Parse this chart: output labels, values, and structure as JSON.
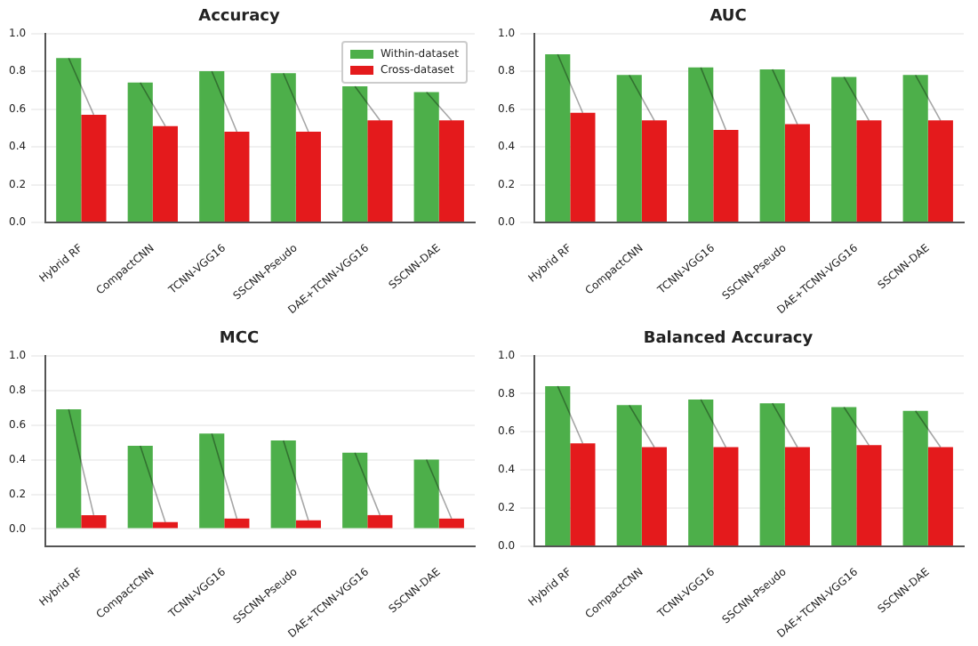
{
  "chart_data": [
    {
      "type": "bar",
      "title": "Accuracy",
      "categories": [
        "Hybrid RF",
        "CompactCNN",
        "TCNN-VGG16",
        "SSCNN-Pseudo",
        "DAE+TCNN-VGG16",
        "SSCNN-DAE"
      ],
      "series": [
        {
          "name": "Within-dataset",
          "color": "#4daf4a",
          "values": [
            0.87,
            0.74,
            0.8,
            0.79,
            0.72,
            0.69
          ]
        },
        {
          "name": "Cross-dataset",
          "color": "#e41a1c",
          "values": [
            0.57,
            0.51,
            0.48,
            0.48,
            0.54,
            0.54
          ]
        }
      ],
      "ylim": [
        0,
        1
      ],
      "yticks": [
        {
          "value": 0,
          "label": "0.0"
        },
        {
          "value": 0.2,
          "label": "0.2"
        },
        {
          "value": 0.4,
          "label": "0.4"
        },
        {
          "value": 0.6,
          "label": "0.6"
        },
        {
          "value": 0.8,
          "label": "0.8"
        },
        {
          "value": 1,
          "label": "1.0"
        }
      ],
      "grid": "y",
      "legend": "top right"
    },
    {
      "type": "bar",
      "title": "AUC",
      "categories": [
        "Hybrid RF",
        "CompactCNN",
        "TCNN-VGG16",
        "SSCNN-Pseudo",
        "DAE+TCNN-VGG16",
        "SSCNN-DAE"
      ],
      "series": [
        {
          "color": "#4daf4a",
          "values": [
            0.89,
            0.78,
            0.82,
            0.81,
            0.77,
            0.78
          ]
        },
        {
          "color": "#e41a1c",
          "values": [
            0.58,
            0.54,
            0.49,
            0.52,
            0.54,
            0.54
          ]
        }
      ],
      "ylim": [
        0,
        1
      ],
      "yticks": [
        {
          "value": 0,
          "label": "0.0"
        },
        {
          "value": 0.2,
          "label": "0.2"
        },
        {
          "value": 0.4,
          "label": "0.4"
        },
        {
          "value": 0.6,
          "label": "0.6"
        },
        {
          "value": 0.8,
          "label": "0.8"
        },
        {
          "value": 1,
          "label": "1.0"
        }
      ],
      "grid": "y"
    },
    {
      "type": "bar",
      "title": "MCC",
      "categories": [
        "Hybrid RF",
        "CompactCNN",
        "TCNN-VGG16",
        "SSCNN-Pseudo",
        "DAE+TCNN-VGG16",
        "SSCNN-DAE"
      ],
      "series": [
        {
          "color": "#4daf4a",
          "values": [
            0.69,
            0.48,
            0.55,
            0.51,
            0.44,
            0.4
          ]
        },
        {
          "color": "#e41a1c",
          "values": [
            0.08,
            0.04,
            0.06,
            0.05,
            0.08,
            0.06
          ]
        }
      ],
      "ylim": [
        -0.1,
        1
      ],
      "yticks": [
        {
          "value": 0,
          "label": "0.0"
        },
        {
          "value": 0.2,
          "label": "0.2"
        },
        {
          "value": 0.4,
          "label": "0.4"
        },
        {
          "value": 0.6,
          "label": "0.6"
        },
        {
          "value": 0.8,
          "label": "0.8"
        },
        {
          "value": 1,
          "label": "1.0"
        }
      ],
      "grid": "y"
    },
    {
      "type": "bar",
      "title": "Balanced Accuracy",
      "categories": [
        "Hybrid RF",
        "CompactCNN",
        "TCNN-VGG16",
        "SSCNN-Pseudo",
        "DAE+TCNN-VGG16",
        "SSCNN-DAE"
      ],
      "series": [
        {
          "color": "#4daf4a",
          "values": [
            0.84,
            0.74,
            0.77,
            0.75,
            0.73,
            0.71
          ]
        },
        {
          "color": "#e41a1c",
          "values": [
            0.54,
            0.52,
            0.52,
            0.52,
            0.53,
            0.52
          ]
        }
      ],
      "ylim": [
        0,
        1
      ],
      "yticks": [
        {
          "value": 0,
          "label": "0.0"
        },
        {
          "value": 0.2,
          "label": "0.2"
        },
        {
          "value": 0.4,
          "label": "0.4"
        },
        {
          "value": 0.6,
          "label": "0.6"
        },
        {
          "value": 0.8,
          "label": "0.8"
        },
        {
          "value": 1,
          "label": "1.0"
        }
      ],
      "grid": "y"
    }
  ]
}
